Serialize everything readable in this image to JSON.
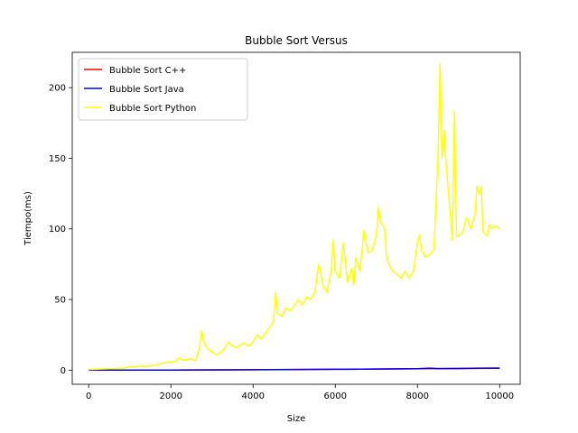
{
  "chart_data": {
    "type": "line",
    "title": "Bubble Sort Versus",
    "xlabel": "Size",
    "ylabel": "Tiempo(ms)",
    "xlim": [
      -400,
      10500
    ],
    "ylim": [
      -10,
      225
    ],
    "xticks": [
      0,
      2000,
      4000,
      6000,
      8000,
      10000
    ],
    "yticks": [
      0,
      50,
      100,
      150,
      200
    ],
    "legend_position": "upper-left",
    "grid": false,
    "series": [
      {
        "name": "Bubble Sort C++",
        "color": "#ff0000",
        "x": [
          0,
          2000,
          4000,
          6000,
          8000,
          10000
        ],
        "y": [
          0.0,
          0.1,
          0.3,
          0.6,
          1.0,
          1.3
        ]
      },
      {
        "name": "Bubble Sort Java",
        "color": "#0000ff",
        "x": [
          0,
          1000,
          2000,
          3000,
          4000,
          5000,
          6000,
          7000,
          8000,
          8300,
          8500,
          9000,
          9500,
          10000
        ],
        "y": [
          0.0,
          0.0,
          0.1,
          0.2,
          0.3,
          0.5,
          0.6,
          0.8,
          1.0,
          1.4,
          1.1,
          1.2,
          1.4,
          1.5
        ]
      },
      {
        "name": "Bubble Sort Python",
        "color": "#ffff00",
        "x": [
          0,
          500,
          900,
          1000,
          1100,
          1200,
          1300,
          1500,
          1700,
          1900,
          2100,
          2200,
          2300,
          2500,
          2600,
          2700,
          2750,
          2800,
          2900,
          3000,
          3100,
          3200,
          3300,
          3400,
          3500,
          3600,
          3700,
          3800,
          3900,
          4000,
          4100,
          4200,
          4300,
          4400,
          4500,
          4550,
          4600,
          4700,
          4800,
          4900,
          5000,
          5100,
          5200,
          5300,
          5400,
          5500,
          5600,
          5700,
          5800,
          5900,
          5950,
          6000,
          6100,
          6200,
          6300,
          6400,
          6450,
          6500,
          6600,
          6700,
          6800,
          6900,
          7000,
          7050,
          7100,
          7200,
          7250,
          7300,
          7400,
          7500,
          7600,
          7700,
          7800,
          7900,
          8000,
          8050,
          8100,
          8200,
          8300,
          8400,
          8500,
          8550,
          8600,
          8650,
          8700,
          8800,
          8850,
          8900,
          8950,
          9000,
          9100,
          9200,
          9300,
          9400,
          9450,
          9500,
          9550,
          9600,
          9700,
          9750,
          9800,
          9900,
          10000
        ],
        "y": [
          0.5,
          1,
          1.5,
          2.5,
          2,
          3,
          2.5,
          3,
          4,
          5.5,
          6,
          8.5,
          7,
          8,
          6.5,
          16,
          28,
          20,
          15,
          13,
          11,
          12,
          15,
          20,
          17,
          16,
          18,
          19,
          17,
          20,
          25,
          22,
          26,
          30,
          35,
          55,
          40,
          38,
          44,
          42,
          45,
          50,
          46,
          52,
          50,
          55,
          75,
          60,
          55,
          70,
          92,
          70,
          65,
          90,
          62,
          72,
          60,
          80,
          70,
          99,
          83,
          85,
          95,
          115,
          105,
          100,
          80,
          75,
          70,
          68,
          65,
          70,
          65,
          70,
          90,
          96,
          85,
          80,
          82,
          85,
          150,
          217,
          150,
          170,
          145,
          110,
          92,
          183,
          95,
          95,
          98,
          108,
          100,
          110,
          130,
          125,
          130,
          98,
          95,
          103,
          100,
          102,
          100
        ]
      }
    ]
  }
}
